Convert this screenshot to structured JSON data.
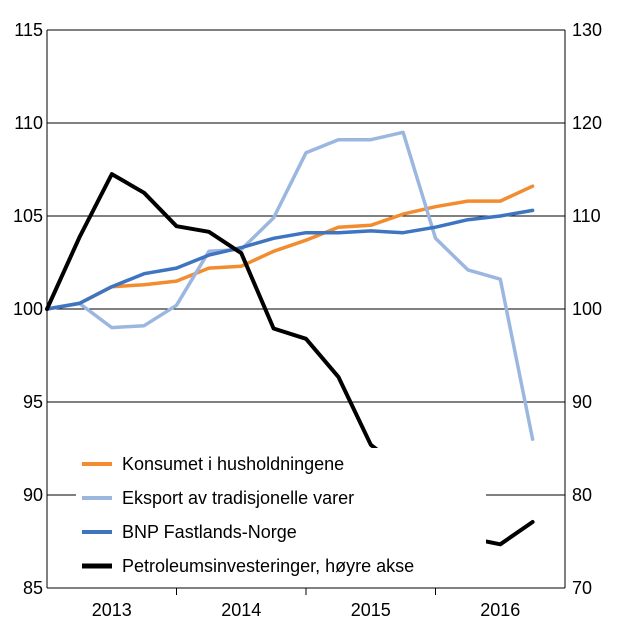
{
  "chart_data": {
    "type": "line",
    "x_labels": [
      "2013",
      "2014",
      "2015",
      "2016"
    ],
    "left_axis": {
      "ylim": [
        85,
        115
      ],
      "ticks": [
        "85",
        "90",
        "95",
        "100",
        "105",
        "110",
        "115"
      ]
    },
    "right_axis": {
      "ylim": [
        70,
        130
      ],
      "ticks": [
        "70",
        "80",
        "90",
        "100",
        "110",
        "120",
        "130"
      ]
    },
    "grid": "horizontal",
    "legend_placement": "bottom-left",
    "series": [
      {
        "name": "Konsumet i husholdningene",
        "axis": "left",
        "color": "#f28c2e",
        "values": [
          100,
          100.3,
          101.2,
          101.3,
          101.5,
          102.2,
          102.3,
          103.1,
          103.7,
          104.4,
          104.5,
          105.1,
          105.5,
          105.8,
          105.8,
          106.6
        ]
      },
      {
        "name": "Eksport av tradisjonelle varer",
        "axis": "left",
        "color": "#9bb7e0",
        "values": [
          100,
          100.3,
          99.0,
          99.1,
          100.2,
          103.1,
          103.2,
          104.9,
          108.4,
          109.1,
          109.1,
          109.5,
          103.8,
          102.1,
          101.6,
          93.0
        ]
      },
      {
        "name": "BNP Fastlands-Norge",
        "axis": "left",
        "color": "#3f74c0",
        "values": [
          100,
          100.3,
          101.2,
          101.9,
          102.2,
          102.9,
          103.3,
          103.8,
          104.1,
          104.1,
          104.2,
          104.1,
          104.4,
          104.8,
          105.0,
          105.3
        ]
      },
      {
        "name": "Petroleumsinvesteringer, høyre akse",
        "axis": "right",
        "color": "#000000",
        "values": [
          100,
          107.7,
          114.5,
          112.5,
          108.9,
          108.3,
          106.0,
          97.9,
          96.8,
          92.7,
          85.4,
          82.7,
          78.4,
          75.4,
          74.7,
          77.1
        ]
      }
    ]
  }
}
